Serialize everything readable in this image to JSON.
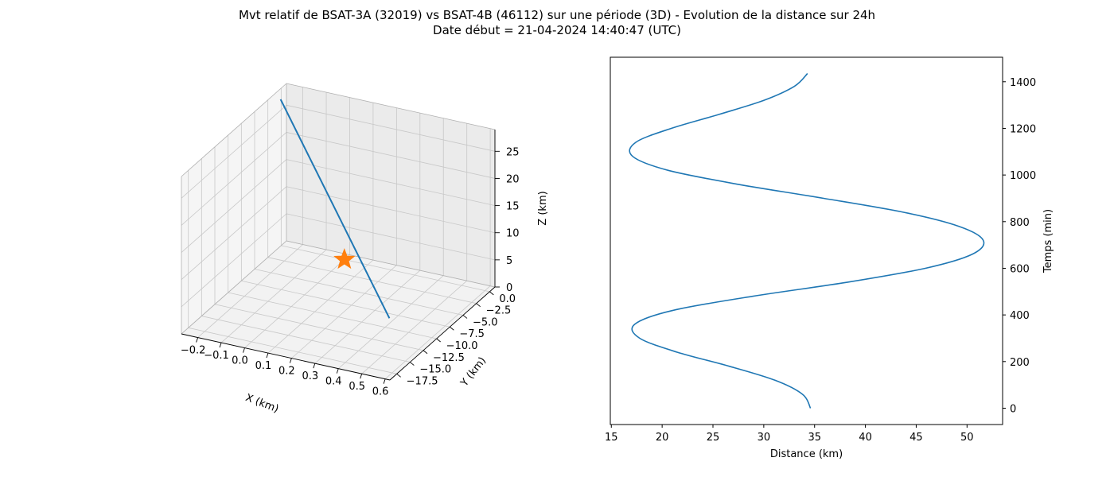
{
  "figure": {
    "title_line_1": "Mvt relatif de BSAT-3A (32019) vs BSAT-4B (46112) sur une période (3D) - Evolution de la distance sur 24h",
    "title_line_2": "Date début = 21-04-2024 14:40:47 (UTC)"
  },
  "colors": {
    "line": "#1f77b4",
    "marker": "#ff7f0e"
  },
  "chart_data": [
    {
      "type": "line3d",
      "xlabel": "X (km)",
      "ylabel": "Y (km)",
      "zlabel": "Z (km)",
      "xlim": [
        -0.27,
        0.62
      ],
      "ylim": [
        -18.8,
        1.0
      ],
      "zlim": [
        0,
        29
      ],
      "xticks": [
        -0.2,
        -0.1,
        0.0,
        0.1,
        0.2,
        0.3,
        0.4,
        0.5,
        0.6
      ],
      "xtick_labels": [
        "−0.2",
        "−0.1",
        "0.0",
        "0.1",
        "0.2",
        "0.3",
        "0.4",
        "0.5",
        "0.6"
      ],
      "yticks": [
        0.0,
        -2.5,
        -5.0,
        -7.5,
        -10.0,
        -12.5,
        -15.0,
        -17.5
      ],
      "ytick_labels": [
        "0.0",
        "−2.5",
        "−5.0",
        "−7.5",
        "−10.0",
        "−12.5",
        "−15.0",
        "−17.5"
      ],
      "zticks": [
        0,
        5,
        10,
        15,
        20,
        25
      ],
      "ztick_labels": [
        "0",
        "5",
        "10",
        "15",
        "20",
        "25"
      ],
      "grid": true,
      "series": [
        {
          "x": [
            -0.25,
            0.6
          ],
          "y": [
            -1.0,
            -18.0
          ],
          "z": [
            28.0,
            10.5
          ]
        }
      ],
      "marker": {
        "shape": "star",
        "x": 0.0,
        "y": 0.0,
        "z": 0.0
      }
    },
    {
      "type": "line",
      "xlabel": "Distance (km)",
      "ylabel": "Temps (min)",
      "y_axis_side": "right",
      "xlim": [
        14.9,
        53.5
      ],
      "ylim": [
        -70,
        1505
      ],
      "xticks": [
        15,
        20,
        25,
        30,
        35,
        40,
        45,
        50
      ],
      "yticks": [
        0,
        200,
        400,
        600,
        800,
        1000,
        1200,
        1400
      ],
      "grid": false,
      "series": [
        {
          "x": [
            34.6,
            33.8,
            31.1,
            26.6,
            21.5,
            17.8,
            17.3,
            21.1,
            28.9,
            38.2,
            45.9,
            50.5,
            51.6,
            49.2,
            43.8,
            35.9,
            27.5,
            20.6,
            17.1,
            17.4,
            20.9,
            25.6,
            30.0,
            33.0,
            34.3
          ],
          "y": [
            0,
            60,
            120,
            180,
            240,
            300,
            360,
            420,
            480,
            540,
            600,
            660,
            720,
            780,
            840,
            900,
            960,
            1020,
            1080,
            1140,
            1200,
            1260,
            1320,
            1380,
            1435
          ]
        }
      ]
    }
  ]
}
